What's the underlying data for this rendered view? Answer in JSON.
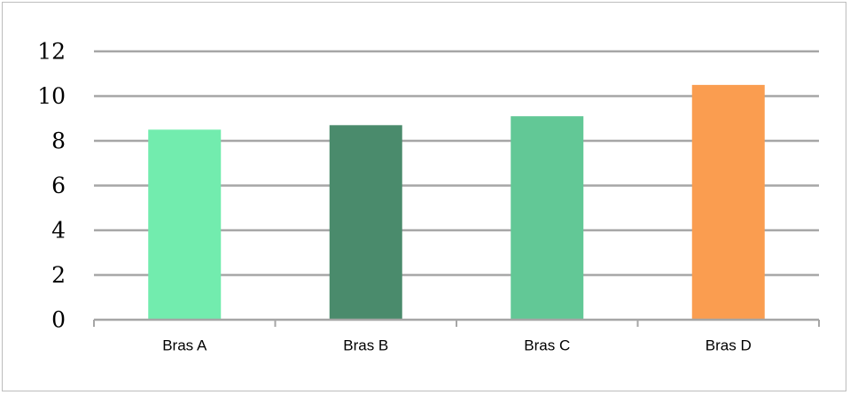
{
  "chart_data": {
    "type": "bar",
    "title": "",
    "xlabel": "",
    "ylabel": "",
    "categories": [
      "Bras A",
      "Bras B",
      "Bras C",
      "Bras D"
    ],
    "values": [
      8.5,
      8.7,
      9.1,
      10.5
    ],
    "colors": [
      "#72ecae",
      "#4a8b6c",
      "#62c896",
      "#fa9d50"
    ],
    "ylim": [
      0,
      12
    ],
    "yticks": [
      "0",
      "2",
      "4",
      "6",
      "8",
      "10",
      "12"
    ],
    "grid": true,
    "legend": "none"
  }
}
